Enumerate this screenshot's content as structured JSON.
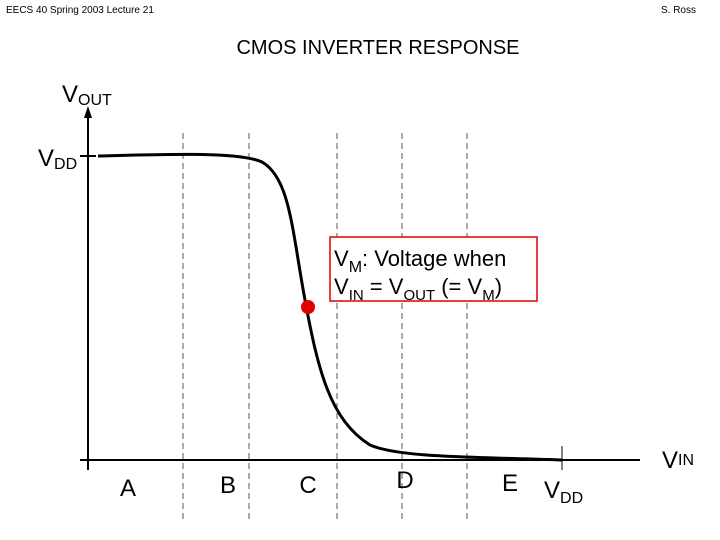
{
  "header": {
    "left": "EECS 40 Spring 2003 Lecture 21",
    "right": "S. Ross"
  },
  "title": "CMOS INVERTER RESPONSE",
  "axes": {
    "y_label": {
      "main": "V",
      "sub": "OUT"
    },
    "y_vdd": {
      "main": "V",
      "sub": "DD"
    },
    "x_label": {
      "main": "V",
      "sub": "IN"
    },
    "x_vdd": {
      "main": "V",
      "sub": "DD"
    }
  },
  "regions": [
    "A",
    "B",
    "C",
    "D",
    "E"
  ],
  "annotation": {
    "lines": [
      [
        "V",
        "M",
        ":  Voltage when"
      ],
      [
        "V",
        "IN",
        " = V",
        "OUT",
        " (= V",
        "M",
        ")"
      ]
    ]
  }
}
